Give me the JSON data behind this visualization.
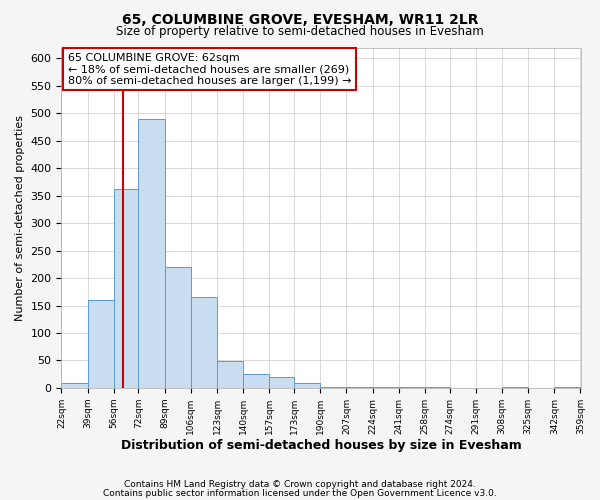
{
  "title1": "65, COLUMBINE GROVE, EVESHAM, WR11 2LR",
  "title2": "Size of property relative to semi-detached houses in Evesham",
  "xlabel": "Distribution of semi-detached houses by size in Evesham",
  "ylabel": "Number of semi-detached properties",
  "bin_edges": [
    22,
    39,
    56,
    72,
    89,
    106,
    123,
    140,
    157,
    173,
    190,
    207,
    224,
    241,
    258,
    274,
    291,
    308,
    325,
    342,
    359
  ],
  "bar_heights": [
    8,
    160,
    363,
    490,
    220,
    165,
    48,
    25,
    20,
    8,
    2,
    2,
    1,
    1,
    1,
    0,
    0,
    1,
    0,
    1
  ],
  "bar_color": "#c8ddf0",
  "bar_edge_color": "#5b9bd5",
  "subject_size": 62,
  "subject_label": "65 COLUMBINE GROVE: 62sqm",
  "pct_smaller": 18,
  "count_smaller": 269,
  "pct_larger": 80,
  "count_larger": 1199,
  "vline_color": "#cc0000",
  "annotation_box_color": "#cc0000",
  "ylim": [
    0,
    620
  ],
  "yticks": [
    0,
    50,
    100,
    150,
    200,
    250,
    300,
    350,
    400,
    450,
    500,
    550,
    600
  ],
  "tick_labels": [
    "22sqm",
    "39sqm",
    "56sqm",
    "72sqm",
    "89sqm",
    "106sqm",
    "123sqm",
    "140sqm",
    "157sqm",
    "173sqm",
    "190sqm",
    "207sqm",
    "224sqm",
    "241sqm",
    "258sqm",
    "274sqm",
    "291sqm",
    "308sqm",
    "325sqm",
    "342sqm",
    "359sqm"
  ],
  "footer1": "Contains HM Land Registry data © Crown copyright and database right 2024.",
  "footer2": "Contains public sector information licensed under the Open Government Licence v3.0.",
  "bg_color": "#f5f5f5",
  "plot_bg_color": "#ffffff",
  "grid_color": "#cccccc"
}
